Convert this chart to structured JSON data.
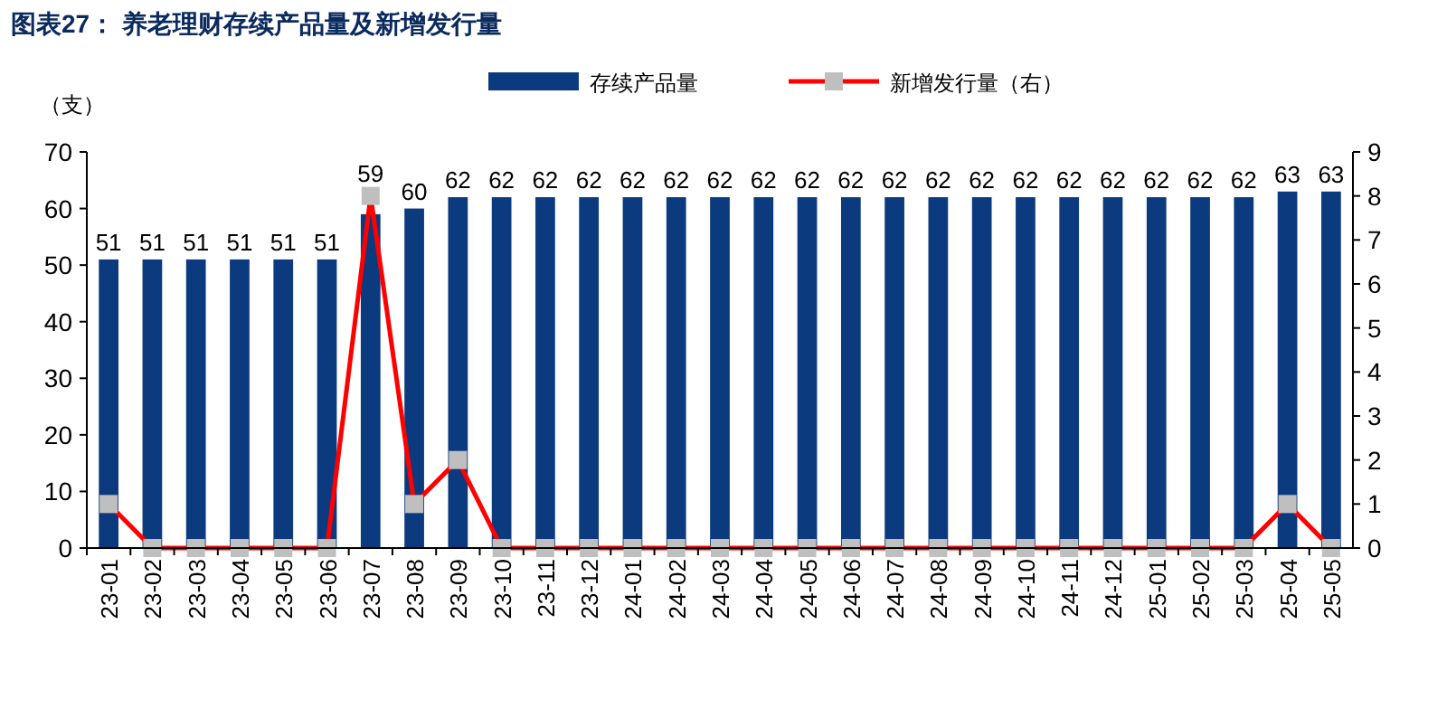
{
  "chart_data": {
    "type": "bar",
    "title": "图表27：  养老理财存续产品量及新增发行量",
    "ylabel": "（支）",
    "categories": [
      "23-01",
      "23-02",
      "23-03",
      "23-04",
      "23-05",
      "23-06",
      "23-07",
      "23-08",
      "23-09",
      "23-10",
      "23-11",
      "23-12",
      "24-01",
      "24-02",
      "24-03",
      "24-04",
      "24-05",
      "24-06",
      "24-07",
      "24-08",
      "24-09",
      "24-10",
      "24-11",
      "24-12",
      "25-01",
      "25-02",
      "25-03",
      "25-04",
      "25-05"
    ],
    "series": [
      {
        "name": "存续产品量",
        "color": "#0b3a7e",
        "values": [
          51,
          51,
          51,
          51,
          51,
          51,
          59,
          60,
          62,
          62,
          62,
          62,
          62,
          62,
          62,
          62,
          62,
          62,
          62,
          62,
          62,
          62,
          62,
          62,
          62,
          62,
          62,
          63,
          63
        ],
        "value_labels": [
          "51",
          "51",
          "51",
          "51",
          "51",
          "51",
          "59",
          "60",
          "62",
          "62",
          "62",
          "62",
          "62",
          "62",
          "62",
          "62",
          "62",
          "62",
          "62",
          "62",
          "62",
          "62",
          "62",
          "62",
          "62",
          "62",
          "62",
          "63",
          "63"
        ]
      },
      {
        "name": "新增发行量（右）",
        "type": "line",
        "axis": "y2",
        "color": "#ff0000",
        "marker": "square",
        "values": [
          1,
          0,
          0,
          0,
          0,
          0,
          8,
          1,
          2,
          0,
          0,
          0,
          0,
          0,
          0,
          0,
          0,
          0,
          0,
          0,
          0,
          0,
          0,
          0,
          0,
          0,
          0,
          1,
          0
        ]
      }
    ],
    "ylim": [
      0,
      70
    ],
    "yticks": [
      0,
      10,
      20,
      30,
      40,
      50,
      60,
      70
    ],
    "y2lim": [
      0,
      9
    ],
    "y2ticks": [
      0,
      1,
      2,
      3,
      4,
      5,
      6,
      7,
      8,
      9
    ],
    "grid": false,
    "legend": "top"
  }
}
